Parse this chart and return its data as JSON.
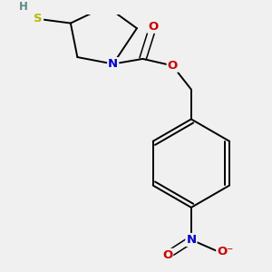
{
  "background_color": "#f0f0f0",
  "atom_colors": {
    "C": "#000000",
    "N": "#0000cc",
    "O": "#cc0000",
    "S": "#b8b800",
    "H": "#5a8a8a"
  },
  "bond_color": "#000000",
  "figsize": [
    3.0,
    3.0
  ],
  "dpi": 100
}
